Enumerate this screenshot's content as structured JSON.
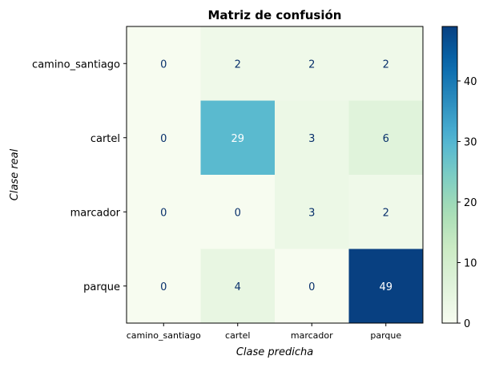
{
  "chart_data": {
    "type": "heatmap",
    "title": "Matriz de confusión",
    "xlabel": "Clase predicha",
    "ylabel": "Clase real",
    "x_categories": [
      "camino_santiago",
      "cartel",
      "marcador",
      "parque"
    ],
    "y_categories": [
      "camino_santiago",
      "cartel",
      "marcador",
      "parque"
    ],
    "values": [
      [
        0,
        2,
        2,
        2
      ],
      [
        0,
        29,
        3,
        6
      ],
      [
        0,
        0,
        3,
        2
      ],
      [
        0,
        4,
        0,
        49
      ]
    ],
    "colormap": "GnBu",
    "colorbar": {
      "range": [
        0,
        49
      ],
      "ticks": [
        0,
        10,
        20,
        30,
        40
      ]
    },
    "cell_text_colors": {
      "light": "#08306b",
      "dark": "#ffffff"
    }
  }
}
